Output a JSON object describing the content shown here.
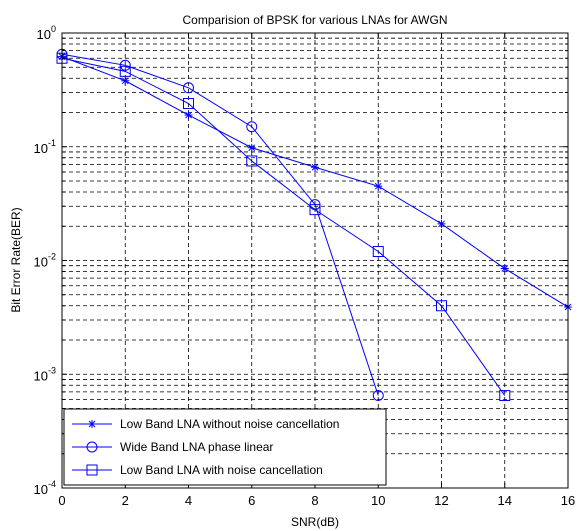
{
  "chart_data": {
    "type": "line",
    "title": "Comparision of BPSK for various LNAs for AWGN",
    "xlabel": "SNR(dB)",
    "ylabel": "Bit Error Rate(BER)",
    "xlim": [
      0,
      16
    ],
    "ylim": [
      0.0001,
      1
    ],
    "yscale": "log",
    "grid": true,
    "legend_position": "bottom-left",
    "line_color": "#0000ff",
    "x_ticks": [
      {
        "value": 0,
        "label": "0"
      },
      {
        "value": 2,
        "label": "2"
      },
      {
        "value": 4,
        "label": "4"
      },
      {
        "value": 6,
        "label": "6"
      },
      {
        "value": 8,
        "label": "8"
      },
      {
        "value": 10,
        "label": "10"
      },
      {
        "value": 12,
        "label": "12"
      },
      {
        "value": 14,
        "label": "14"
      },
      {
        "value": 16,
        "label": "16"
      }
    ],
    "y_ticks": [
      {
        "value": 1,
        "base": "10",
        "exp": "0"
      },
      {
        "value": 0.1,
        "base": "10",
        "exp": "-1"
      },
      {
        "value": 0.01,
        "base": "10",
        "exp": "-2"
      },
      {
        "value": 0.001,
        "base": "10",
        "exp": "-3"
      },
      {
        "value": 0.0001,
        "base": "10",
        "exp": "-4"
      }
    ],
    "series": [
      {
        "name": "Low Band LNA without noise cancellation",
        "marker": "star",
        "x": [
          0,
          2,
          4,
          6,
          8,
          10,
          12,
          14,
          16
        ],
        "y": [
          0.62,
          0.38,
          0.19,
          0.098,
          0.066,
          0.045,
          0.021,
          0.0085,
          0.0039
        ]
      },
      {
        "name": "Wide Band LNA phase linear",
        "marker": "circle",
        "x": [
          0,
          2,
          4,
          6,
          8,
          10
        ],
        "y": [
          0.65,
          0.52,
          0.33,
          0.15,
          0.031,
          0.00065
        ]
      },
      {
        "name": "Low Band LNA with noise cancellation",
        "marker": "square",
        "x": [
          0,
          2,
          4,
          6,
          8,
          10,
          12,
          14
        ],
        "y": [
          0.6,
          0.46,
          0.24,
          0.075,
          0.028,
          0.012,
          0.004,
          0.00065
        ]
      }
    ]
  }
}
